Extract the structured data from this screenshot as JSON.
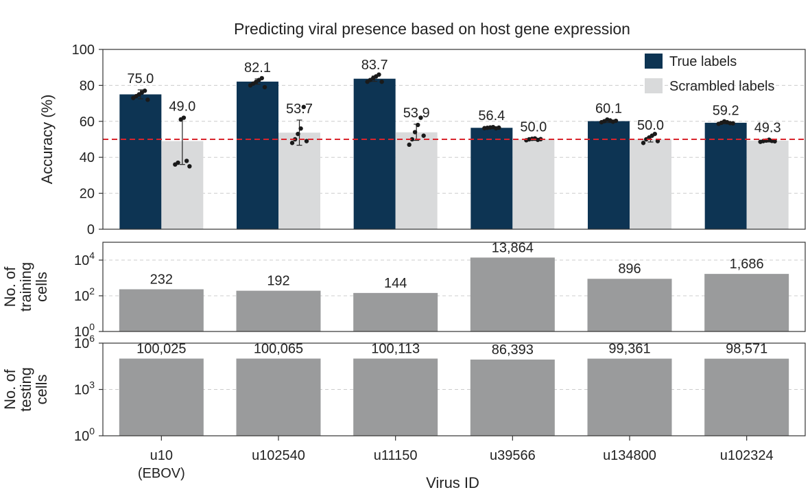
{
  "colors": {
    "true_bar": "#0d3453",
    "scrambled_bar": "#d9dadb",
    "count_bar": "#9a9b9c",
    "chance_line": "#d9242c",
    "dots": "#1a1a1a",
    "grid": "#cccccc"
  },
  "chart_data": [
    {
      "type": "bar",
      "title": "Predicting viral presence based on host gene expression",
      "ylabel": "Accuracy (%)",
      "ylim": [
        0,
        100
      ],
      "yticks": [
        0,
        20,
        40,
        60,
        80,
        100
      ],
      "grid": "horizontal dashed",
      "legend_position": "top-right",
      "reference_line": 50,
      "categories": [
        "u10 (EBOV)",
        "u102540",
        "u11150",
        "u39566",
        "u134800",
        "u102324"
      ],
      "series": [
        {
          "name": "True labels",
          "values": [
            75.0,
            82.1,
            83.7,
            56.4,
            60.1,
            59.2
          ],
          "labels": [
            "75.0",
            "82.1",
            "83.7",
            "56.4",
            "60.1",
            "59.2"
          ],
          "error": [
            2.5,
            1.5,
            1.5,
            0.4,
            0.8,
            0.6
          ],
          "points": [
            [
              73,
              74,
              75,
              76,
              77,
              72
            ],
            [
              80,
              81,
              82,
              83,
              84,
              79
            ],
            [
              82,
              83,
              84,
              85,
              86,
              82
            ],
            [
              56.2,
              56.4,
              56.6,
              56.8,
              56.1,
              56.5
            ],
            [
              59.5,
              60.1,
              61,
              60.5,
              59.8,
              60.3
            ],
            [
              58.6,
              59.2,
              60,
              59.5,
              59,
              58.9
            ]
          ]
        },
        {
          "name": "Scrambled labels",
          "values": [
            49.0,
            53.7,
            53.9,
            50.0,
            50.0,
            49.3
          ],
          "labels": [
            "49.0",
            "53.7",
            "53.9",
            "50.0",
            "50.0",
            "49.3"
          ],
          "error": [
            13,
            7,
            4.5,
            0.6,
            1.5,
            0.8
          ],
          "points": [
            [
              36,
              37,
              61,
              62,
              38,
              35
            ],
            [
              48,
              50,
              53,
              56,
              68,
              49
            ],
            [
              47,
              50,
              54,
              58,
              62,
              52
            ],
            [
              49.5,
              50,
              50.3,
              50.5,
              49.7,
              50.1
            ],
            [
              48,
              50,
              51,
              52,
              53,
              49
            ],
            [
              48.6,
              49,
              49.3,
              49.8,
              49.1,
              48.9
            ]
          ]
        }
      ]
    },
    {
      "type": "bar",
      "ylabel": "No. of training cells",
      "yscale": "log",
      "ylim": [
        1,
        100000
      ],
      "ytick_labels": [
        {
          "base": "10",
          "exp": "0"
        },
        {
          "base": "10",
          "exp": "2"
        },
        {
          "base": "10",
          "exp": "4"
        }
      ],
      "yticks": [
        1,
        100,
        10000
      ],
      "categories": [
        "u10 (EBOV)",
        "u102540",
        "u11150",
        "u39566",
        "u134800",
        "u102324"
      ],
      "values": [
        232,
        192,
        144,
        13864,
        896,
        1686
      ],
      "labels": [
        "232",
        "192",
        "144",
        "13,864",
        "896",
        "1,686"
      ]
    },
    {
      "type": "bar",
      "ylabel": "No. of testing cells",
      "yscale": "log",
      "ylim": [
        1,
        1000000
      ],
      "ytick_labels": [
        {
          "base": "10",
          "exp": "0"
        },
        {
          "base": "10",
          "exp": "3"
        },
        {
          "base": "10",
          "exp": "6"
        }
      ],
      "yticks": [
        1,
        1000,
        1000000
      ],
      "categories": [
        "u10 (EBOV)",
        "u102540",
        "u11150",
        "u39566",
        "u134800",
        "u102324"
      ],
      "values": [
        100025,
        100065,
        100113,
        86393,
        99361,
        98571
      ],
      "labels": [
        "100,025",
        "100,065",
        "100,113",
        "86,393",
        "99,361",
        "98,571"
      ]
    }
  ],
  "xaxis": {
    "label": "Virus ID",
    "ticks": [
      {
        "line1": "u10",
        "line2": "(EBOV)"
      },
      {
        "line1": "u102540",
        "line2": ""
      },
      {
        "line1": "u11150",
        "line2": ""
      },
      {
        "line1": "u39566",
        "line2": ""
      },
      {
        "line1": "u134800",
        "line2": ""
      },
      {
        "line1": "u102324",
        "line2": ""
      }
    ]
  },
  "panel_ylabels": {
    "accuracy": [
      "Accuracy (%)"
    ],
    "training": [
      "No. of",
      "training",
      "cells"
    ],
    "testing": [
      "No. of",
      "testing",
      "cells"
    ]
  }
}
